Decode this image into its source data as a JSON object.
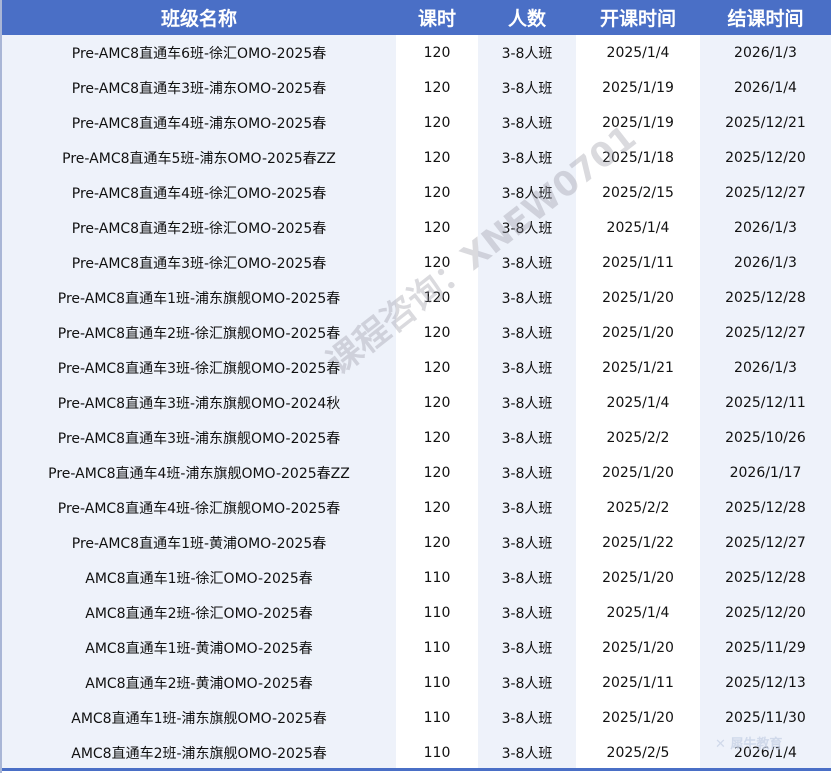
{
  "headers": [
    "班级名称",
    "课时",
    "人数",
    "开课时间",
    "结课时间"
  ],
  "rows": [
    [
      "Pre-AMC8直通车6班-徐汇OMO-2025春",
      "120",
      "3-8人班",
      "2025/1/4",
      "2026/1/3"
    ],
    [
      "Pre-AMC8直通车3班-浦东OMO-2025春",
      "120",
      "3-8人班",
      "2025/1/19",
      "2026/1/4"
    ],
    [
      "Pre-AMC8直通车4班-浦东OMO-2025春",
      "120",
      "3-8人班",
      "2025/1/19",
      "2025/12/21"
    ],
    [
      "Pre-AMC8直通车5班-浦东OMO-2025春ZZ",
      "120",
      "3-8人班",
      "2025/1/18",
      "2025/12/20"
    ],
    [
      "Pre-AMC8直通车4班-徐汇OMO-2025春",
      "120",
      "3-8人班",
      "2025/2/15",
      "2025/12/27"
    ],
    [
      "Pre-AMC8直通车2班-徐汇OMO-2025春",
      "120",
      "3-8人班",
      "2025/1/4",
      "2026/1/3"
    ],
    [
      "Pre-AMC8直通车3班-徐汇OMO-2025春",
      "120",
      "3-8人班",
      "2025/1/11",
      "2026/1/3"
    ],
    [
      "Pre-AMC8直通车1班-浦东旗舰OMO-2025春",
      "120",
      "3-8人班",
      "2025/1/20",
      "2025/12/28"
    ],
    [
      "Pre-AMC8直通车2班-徐汇旗舰OMO-2025春",
      "120",
      "3-8人班",
      "2025/1/20",
      "2025/12/27"
    ],
    [
      "Pre-AMC8直通车3班-徐汇旗舰OMO-2025春",
      "120",
      "3-8人班",
      "2025/1/21",
      "2026/1/3"
    ],
    [
      "Pre-AMC8直通车3班-浦东旗舰OMO-2024秋",
      "120",
      "3-8人班",
      "2025/1/4",
      "2025/12/11"
    ],
    [
      "Pre-AMC8直通车3班-浦东旗舰OMO-2025春",
      "120",
      "3-8人班",
      "2025/2/2",
      "2025/10/26"
    ],
    [
      "Pre-AMC8直通车4班-浦东旗舰OMO-2025春ZZ",
      "120",
      "3-8人班",
      "2025/1/20",
      "2026/1/17"
    ],
    [
      "Pre-AMC8直通车4班-徐汇旗舰OMO-2025春",
      "120",
      "3-8人班",
      "2025/2/2",
      "2025/12/28"
    ],
    [
      "Pre-AMC8直通车1班-黄浦OMO-2025春",
      "120",
      "3-8人班",
      "2025/1/22",
      "2025/12/27"
    ],
    [
      "AMC8直通车1班-徐汇OMO-2025春",
      "110",
      "3-8人班",
      "2025/1/20",
      "2025/12/28"
    ],
    [
      "AMC8直通车2班-徐汇OMO-2025春",
      "110",
      "3-8人班",
      "2025/1/4",
      "2025/12/20"
    ],
    [
      "AMC8直通车1班-黄浦OMO-2025春",
      "110",
      "3-8人班",
      "2025/1/20",
      "2025/11/29"
    ],
    [
      "AMC8直通车2班-黄浦OMO-2025春",
      "110",
      "3-8人班",
      "2025/1/11",
      "2025/12/13"
    ],
    [
      "AMC8直通车1班-浦东旗舰OMO-2025春",
      "110",
      "3-8人班",
      "2025/1/20",
      "2025/11/30"
    ],
    [
      "AMC8直通车2班-浦东旗舰OMO-2025春",
      "110",
      "3-8人班",
      "2025/2/5",
      "2026/1/4"
    ]
  ],
  "watermark": "课程咨询：XNEW0701",
  "logo_text": "犀牛教育",
  "colors": {
    "header_bg": "#4a6fc6",
    "stripe": "#eef2fa"
  }
}
